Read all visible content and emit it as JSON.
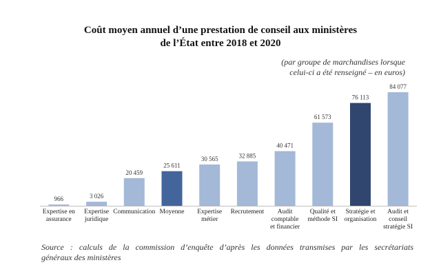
{
  "chart_data": {
    "type": "bar",
    "title": "Coût moyen annuel d’une prestation de conseil aux ministères de l’État entre 2018 et 2020",
    "title_lines": [
      "Coût moyen annuel d’une prestation de conseil aux ministères",
      "de l’État entre 2018 et 2020"
    ],
    "subtitle_lines": [
      "(par groupe de marchandises lorsque",
      "celui-ci a été renseigné – en euros)"
    ],
    "categories": [
      [
        "Expertise en",
        "assurance"
      ],
      [
        "Expertise",
        "juridique"
      ],
      [
        "Communication"
      ],
      [
        "Moyenne"
      ],
      [
        "Expertise",
        "métier"
      ],
      [
        "Recrutement"
      ],
      [
        "Audit",
        "comptable",
        "et financier"
      ],
      [
        "Qualité et",
        "méthode SI"
      ],
      [
        "Stratégie et",
        "organisation"
      ],
      [
        "Audit et",
        "conseil",
        "stratégie SI"
      ]
    ],
    "values": [
      966,
      3026,
      20459,
      25611,
      30565,
      32885,
      40471,
      61573,
      76113,
      84077
    ],
    "value_labels": [
      "966",
      "3 026",
      "20 459",
      "25 611",
      "30 565",
      "32 885",
      "40 471",
      "61 573",
      "76 113",
      "84 077"
    ],
    "highlight_index": [
      3,
      8
    ],
    "colors": {
      "default": "#a4b8d8",
      "average": "#43659c",
      "highlight": "#30466e"
    },
    "ylim": [
      0,
      84077
    ],
    "xlabel": "",
    "ylabel": "",
    "grid": false,
    "legend": "none"
  },
  "source_lines": [
    "Source : calculs de la commission d’enquête d’après les données transmises par les secrétariats",
    "généraux des ministères"
  ]
}
